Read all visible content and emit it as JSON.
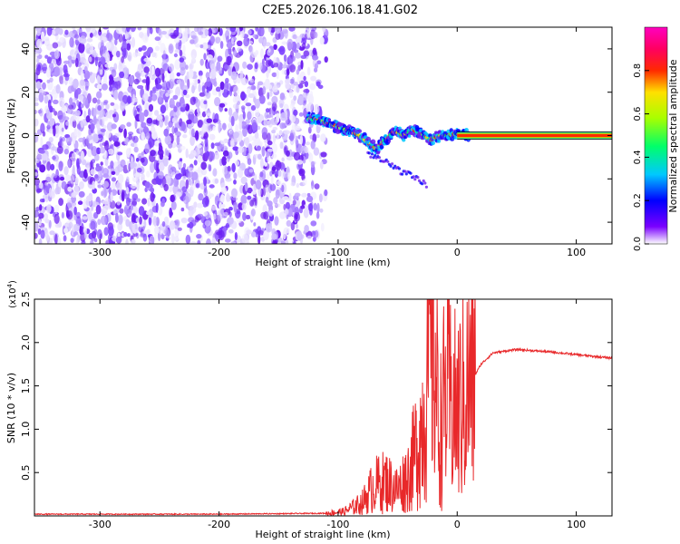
{
  "title": "C2E5.2026.106.18.41.G02",
  "chart_data": [
    {
      "type": "heatmap",
      "xlabel": "Height of straight line (km)",
      "ylabel": "Frequency (Hz)",
      "xlim": [
        -355,
        130
      ],
      "ylim": [
        -50,
        50
      ],
      "xticks": [
        -300,
        -200,
        -100,
        0,
        100
      ],
      "yticks": [
        -40,
        -20,
        0,
        20,
        40
      ],
      "noise_region_x": [
        -355,
        -110
      ],
      "signal_track": {
        "x": [
          -125,
          -115,
          -105,
          -95,
          -85,
          -75,
          -68,
          -60,
          -52,
          -45,
          -38,
          -30,
          -22,
          -15,
          -8,
          0,
          10
        ],
        "y": [
          8,
          7,
          5,
          3,
          1,
          -3,
          -6,
          -2,
          2,
          0,
          3,
          1,
          -2,
          0,
          0,
          1,
          0
        ]
      },
      "steady_line": {
        "x": [
          0,
          130
        ],
        "y": 0
      },
      "colorbar": {
        "label": "Normalized spectral amplitude",
        "range": [
          0,
          1
        ],
        "ticks": [
          "0.0",
          "0.2",
          "0.4",
          "0.6",
          "0.8"
        ],
        "colors": [
          "#ffffff",
          "#7a00ff",
          "#0000ff",
          "#00c8ff",
          "#00ff6a",
          "#a8ff00",
          "#ffe000",
          "#ff2a00",
          "#ff0060",
          "#ff00c0"
        ]
      }
    },
    {
      "type": "line",
      "xlabel": "Height of straight line (km)",
      "ylabel": "SNR (10 * v/v)",
      "scale_label_base": "(x10",
      "scale_label_exp": "4",
      "scale_label_end": ")",
      "xlim": [
        -355,
        130
      ],
      "ylim": [
        0,
        2.5
      ],
      "xticks": [
        -300,
        -200,
        -100,
        0,
        100
      ],
      "yticks": [
        "0.5",
        "1.0",
        "1.5",
        "2.0",
        "2.5"
      ],
      "series": [
        {
          "color": "#e8282a",
          "x": [
            -355,
            -200,
            -110,
            -95,
            -80,
            -70,
            -60,
            -50,
            -40,
            -30,
            -25,
            -20,
            -15,
            -10,
            0,
            10,
            20,
            30,
            50,
            80,
            100,
            130
          ],
          "y": [
            0.02,
            0.02,
            0.03,
            0.05,
            0.15,
            0.35,
            0.4,
            0.3,
            0.5,
            1.0,
            1.6,
            2.2,
            0.9,
            1.4,
            1.2,
            1.5,
            1.75,
            1.88,
            1.92,
            1.89,
            1.86,
            1.82
          ]
        }
      ]
    }
  ]
}
